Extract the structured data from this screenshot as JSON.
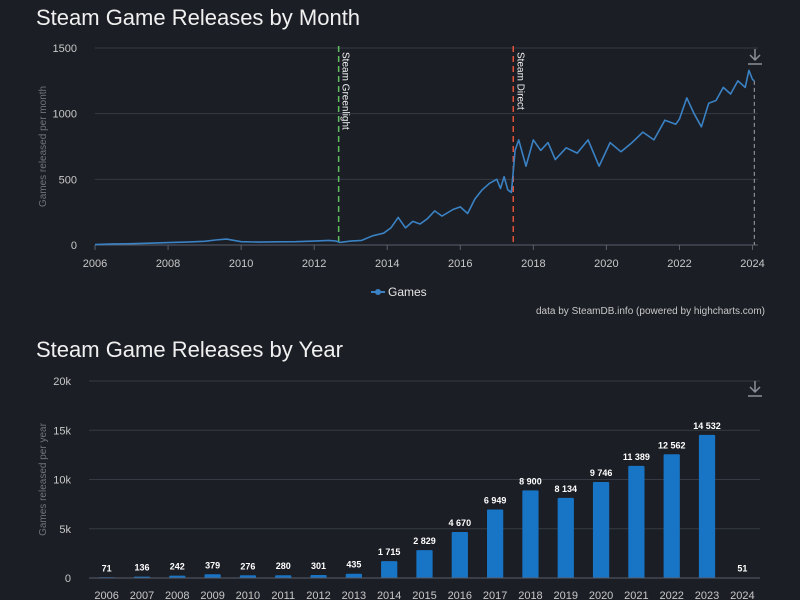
{
  "chart_data": [
    {
      "type": "line",
      "title": "Steam Game Releases by Month",
      "ylabel": "Games released per month",
      "xlabel": "",
      "xlim": [
        2006,
        2024.15
      ],
      "ylim": [
        0,
        1500
      ],
      "yticks": [
        "0",
        "500",
        "1000",
        "1500"
      ],
      "xticks": [
        "2006",
        "2008",
        "2010",
        "2012",
        "2014",
        "2016",
        "2018",
        "2020",
        "2022",
        "2024"
      ],
      "legend": "bottom-center",
      "grid": true,
      "series": [
        {
          "name": "Games",
          "color": "#3a82c4",
          "points": [
            [
              2006.0,
              3
            ],
            [
              2006.5,
              8
            ],
            [
              2007.0,
              10
            ],
            [
              2007.5,
              14
            ],
            [
              2008.0,
              18
            ],
            [
              2008.5,
              22
            ],
            [
              2009.0,
              28
            ],
            [
              2009.3,
              38
            ],
            [
              2009.6,
              45
            ],
            [
              2010.0,
              25
            ],
            [
              2010.5,
              22
            ],
            [
              2011.0,
              24
            ],
            [
              2011.5,
              25
            ],
            [
              2012.0,
              30
            ],
            [
              2012.4,
              35
            ],
            [
              2012.6,
              30
            ],
            [
              2012.7,
              20
            ],
            [
              2013.0,
              30
            ],
            [
              2013.3,
              35
            ],
            [
              2013.6,
              70
            ],
            [
              2013.9,
              90
            ],
            [
              2014.1,
              130
            ],
            [
              2014.3,
              210
            ],
            [
              2014.5,
              130
            ],
            [
              2014.7,
              180
            ],
            [
              2014.9,
              160
            ],
            [
              2015.1,
              200
            ],
            [
              2015.3,
              260
            ],
            [
              2015.5,
              220
            ],
            [
              2015.8,
              270
            ],
            [
              2016.0,
              290
            ],
            [
              2016.2,
              240
            ],
            [
              2016.4,
              350
            ],
            [
              2016.6,
              420
            ],
            [
              2016.8,
              470
            ],
            [
              2017.0,
              500
            ],
            [
              2017.1,
              430
            ],
            [
              2017.2,
              520
            ],
            [
              2017.3,
              420
            ],
            [
              2017.4,
              400
            ],
            [
              2017.5,
              720
            ],
            [
              2017.6,
              800
            ],
            [
              2017.8,
              600
            ],
            [
              2018.0,
              800
            ],
            [
              2018.2,
              720
            ],
            [
              2018.4,
              780
            ],
            [
              2018.6,
              650
            ],
            [
              2018.9,
              740
            ],
            [
              2019.2,
              700
            ],
            [
              2019.5,
              800
            ],
            [
              2019.8,
              600
            ],
            [
              2020.1,
              780
            ],
            [
              2020.4,
              710
            ],
            [
              2020.7,
              780
            ],
            [
              2021.0,
              860
            ],
            [
              2021.3,
              800
            ],
            [
              2021.6,
              950
            ],
            [
              2021.9,
              920
            ],
            [
              2022.0,
              960
            ],
            [
              2022.2,
              1120
            ],
            [
              2022.4,
              1000
            ],
            [
              2022.6,
              900
            ],
            [
              2022.8,
              1080
            ],
            [
              2023.0,
              1100
            ],
            [
              2023.2,
              1200
            ],
            [
              2023.4,
              1150
            ],
            [
              2023.6,
              1250
            ],
            [
              2023.8,
              1200
            ],
            [
              2023.9,
              1330
            ],
            [
              2024.0,
              1260
            ],
            [
              2024.05,
              1250
            ]
          ]
        }
      ],
      "plot_lines": [
        {
          "x": 2012.67,
          "label": "Steam Greenlight",
          "color": "#5fbf5f"
        },
        {
          "x": 2017.45,
          "label": "Steam Direct",
          "color": "#e0533a"
        }
      ],
      "legend_label": "Games",
      "credits": "data by SteamDB.info (powered by highcharts.com)"
    },
    {
      "type": "bar",
      "title": "Steam Game Releases by Year",
      "ylabel": "Games released per year",
      "xlabel": "",
      "ylim": [
        0,
        20000
      ],
      "yticks": [
        "0",
        "5k",
        "10k",
        "15k",
        "20k"
      ],
      "grid": true,
      "color": "#1874c4",
      "categories": [
        "2006",
        "2007",
        "2008",
        "2009",
        "2010",
        "2011",
        "2012",
        "2013",
        "2014",
        "2015",
        "2016",
        "2017",
        "2018",
        "2019",
        "2020",
        "2021",
        "2022",
        "2023",
        "2024"
      ],
      "values": [
        71,
        136,
        242,
        379,
        276,
        280,
        301,
        435,
        1715,
        2829,
        4670,
        6949,
        8900,
        8134,
        9746,
        11389,
        12562,
        14532,
        51
      ],
      "value_labels": [
        "71",
        "136",
        "242",
        "379",
        "276",
        "280",
        "301",
        "435",
        "1 715",
        "2 829",
        "4 670",
        "6 949",
        "8 900",
        "8 134",
        "9 746",
        "11 389",
        "12 562",
        "14 532",
        "51"
      ]
    }
  ],
  "icons": {
    "export": "download-icon"
  }
}
